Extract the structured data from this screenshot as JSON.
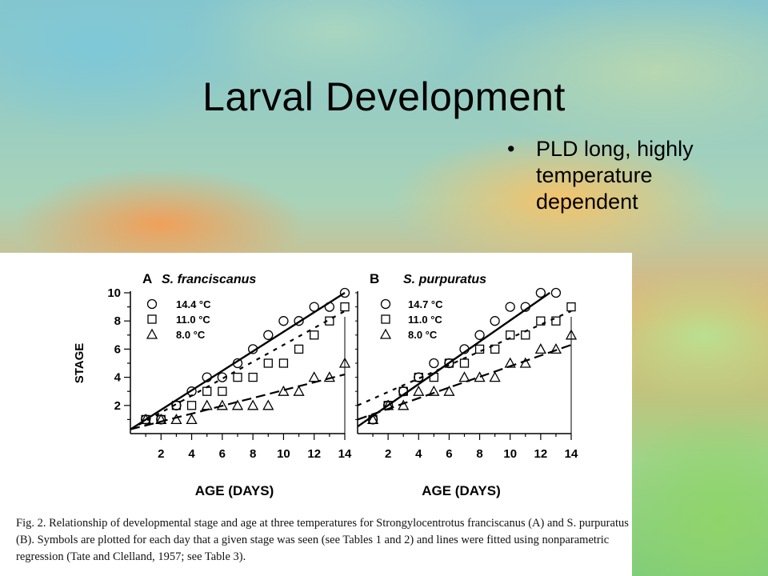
{
  "slide": {
    "title": "Larval Development",
    "bullet": "PLD long, highly temperature dependent",
    "bullet_marker": "•"
  },
  "caption": "Fig. 2. Relationship of developmental stage and age at three temperatures for Strongylocentrotus franciscanus (A) and S. purpuratus (B). Symbols are plotted for each day that a given stage was seen (see Tables 1 and 2) and lines were fitted using nonparametric regression (Tate and Clelland, 1957; see Table 3).",
  "chart_data": [
    {
      "type": "scatter",
      "panel_label": "A",
      "title": "S. franciscanus",
      "xlabel": "AGE  (DAYS)",
      "ylabel": "STAGE",
      "xlim": [
        0,
        14
      ],
      "ylim": [
        0,
        10
      ],
      "xticks": [
        2,
        4,
        6,
        8,
        10,
        12,
        14
      ],
      "yticks": [
        2,
        4,
        6,
        8,
        10
      ],
      "legend_placement": "top-left",
      "series": [
        {
          "name": "14.4 °C",
          "marker": "circle",
          "line": "solid",
          "x": [
            1,
            2,
            3,
            4,
            5,
            6,
            7,
            8,
            9,
            10,
            11,
            12,
            13,
            14
          ],
          "y": [
            1,
            1,
            2,
            3,
            4,
            4,
            5,
            6,
            7,
            8,
            8,
            9,
            9,
            10
          ],
          "fit": [
            [
              0,
              0.3
            ],
            [
              14,
              10
            ]
          ]
        },
        {
          "name": "11.0 °C",
          "marker": "square",
          "line": "dashed",
          "x": [
            1,
            2,
            3,
            4,
            5,
            6,
            7,
            8,
            9,
            10,
            11,
            12,
            13,
            14
          ],
          "y": [
            1,
            1,
            2,
            2,
            3,
            3,
            4,
            4,
            5,
            5,
            6,
            7,
            8,
            9
          ],
          "fit": [
            [
              0,
              0.3
            ],
            [
              14,
              8.7
            ]
          ]
        },
        {
          "name": "8.0 °C",
          "marker": "triangle",
          "line": "long-dash",
          "x": [
            1,
            2,
            3,
            4,
            5,
            6,
            7,
            8,
            9,
            10,
            11,
            12,
            13,
            14
          ],
          "y": [
            1,
            1,
            1,
            1,
            2,
            2,
            2,
            2,
            2,
            3,
            3,
            4,
            4,
            5
          ],
          "fit": [
            [
              0,
              0.3
            ],
            [
              14,
              4.2
            ]
          ]
        }
      ]
    },
    {
      "type": "scatter",
      "panel_label": "B",
      "title": "S. purpuratus",
      "xlabel": "AGE  (DAYS)",
      "ylabel": "",
      "xlim": [
        0,
        14
      ],
      "ylim": [
        0,
        10
      ],
      "xticks": [
        2,
        4,
        6,
        8,
        10,
        12,
        14
      ],
      "yticks": [],
      "legend_placement": "top-left",
      "series": [
        {
          "name": "14.7 °C",
          "marker": "circle",
          "line": "solid",
          "x": [
            1,
            2,
            3,
            4,
            5,
            6,
            7,
            8,
            9,
            10,
            11,
            12,
            13
          ],
          "y": [
            1,
            2,
            3,
            4,
            5,
            5,
            6,
            7,
            8,
            9,
            9,
            10,
            10
          ],
          "fit": [
            [
              0,
              0.5
            ],
            [
              12.6,
              10
            ]
          ]
        },
        {
          "name": "11.0 °C",
          "marker": "square",
          "line": "dashed",
          "x": [
            1,
            2,
            3,
            4,
            5,
            6,
            7,
            8,
            9,
            10,
            11,
            12,
            13,
            14
          ],
          "y": [
            1,
            2,
            3,
            4,
            4,
            5,
            5,
            6,
            6,
            7,
            7,
            8,
            8,
            9
          ],
          "fit": [
            [
              0,
              2.0
            ],
            [
              14,
              8.7
            ]
          ]
        },
        {
          "name": "8.0 °C",
          "marker": "triangle",
          "line": "long-dash",
          "x": [
            1,
            2,
            3,
            4,
            5,
            6,
            7,
            8,
            9,
            10,
            11,
            12,
            13,
            14
          ],
          "y": [
            1,
            2,
            2,
            3,
            3,
            3,
            4,
            4,
            4,
            5,
            5,
            6,
            6,
            7
          ],
          "fit": [
            [
              0,
              1.0
            ],
            [
              14,
              6.3
            ]
          ]
        }
      ]
    }
  ]
}
